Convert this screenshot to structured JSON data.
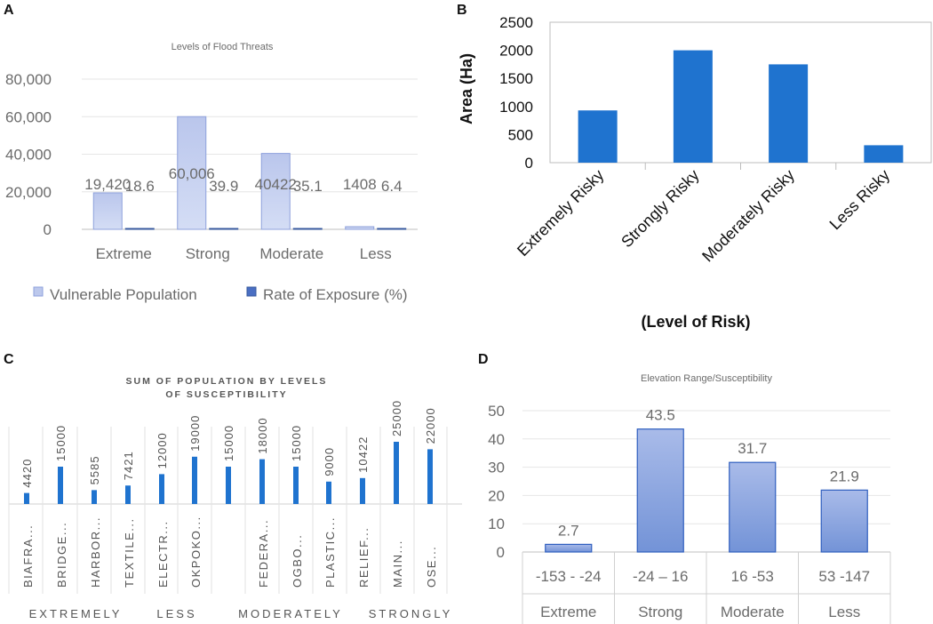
{
  "panels": {
    "a": {
      "letter": "A"
    },
    "b": {
      "letter": "B"
    },
    "c": {
      "letter": "C"
    },
    "d": {
      "letter": "D"
    }
  },
  "chart_data": [
    {
      "id": "A",
      "type": "bar",
      "title": "Levels of Flood Threats",
      "categories": [
        "Extreme",
        "Strong",
        "Moderate",
        "Less"
      ],
      "series": [
        {
          "name": "Vulnerable Population",
          "values": [
            19420,
            60006,
            40422,
            1408
          ],
          "labels": [
            "19,420",
            "60,006",
            "40422",
            "1408"
          ]
        },
        {
          "name": "Rate of Exposure (%)",
          "values": [
            18.6,
            39.9,
            35.1,
            6.4
          ],
          "labels": [
            "18.6",
            "39.9",
            "35.1",
            "6.4"
          ]
        }
      ],
      "yticks": [
        "0",
        "20,000",
        "40,000",
        "60,000",
        "80,000"
      ],
      "ylim": [
        0,
        80000
      ],
      "legend": "bottom",
      "colors": [
        "#bcc8ec",
        "#4a6fc3"
      ]
    },
    {
      "id": "B",
      "type": "bar",
      "title": "",
      "categories": [
        "Extremely Risky",
        "Strongly Risky",
        "Moderately Risky",
        "Less Risky"
      ],
      "values": [
        930,
        2000,
        1750,
        310
      ],
      "ylabel": "Area (Ha)",
      "xlabel": "(Level of Risk)",
      "yticks": [
        "0",
        "500",
        "1000",
        "1500",
        "2000",
        "2500"
      ],
      "ylim": [
        0,
        2500
      ],
      "color": "#1f73cf"
    },
    {
      "id": "C",
      "type": "bar",
      "title": "SUM OF POPULATION BY LEVELS OF SUSCEPTIBILITY",
      "categories": [
        "BIAFRA...",
        "BRIDGE...",
        "HARBOR...",
        "TEXTILE...",
        "ELECTR...",
        "OKPOKO...",
        "",
        "FEDERA...",
        "OGBO...",
        "PLASTIC...",
        "RELIEF...",
        "MAIN...",
        "OSE..."
      ],
      "values": [
        4420,
        15000,
        5585,
        7421,
        12000,
        19000,
        15000,
        18000,
        15000,
        9000,
        10422,
        25000,
        22000
      ],
      "labels": [
        "4420",
        "15000",
        "5585",
        "7421",
        "12000",
        "19000",
        "15000",
        "18000",
        "15000",
        "9000",
        "10422",
        "25000",
        "22000"
      ],
      "groups": [
        "EXTREMELY",
        "LESS",
        "MODERATELY",
        "STRONGLY"
      ],
      "ylim": [
        0,
        30000
      ],
      "color": "#1f73cf"
    },
    {
      "id": "D",
      "type": "bar",
      "title": "Elevation Range/Susceptibility",
      "categories": [
        "-153 - -24",
        "-24 – 16",
        "16 -53",
        "53 -147"
      ],
      "groups": [
        "Extreme",
        "Strong",
        "Moderate",
        "Less"
      ],
      "values": [
        2.7,
        43.5,
        31.7,
        21.9
      ],
      "labels": [
        "2.7",
        "43.5",
        "31.7",
        "21.9"
      ],
      "yticks": [
        "0",
        "10",
        "20",
        "30",
        "40",
        "50"
      ],
      "ylim": [
        0,
        50
      ],
      "color": "#8aa4de"
    }
  ]
}
